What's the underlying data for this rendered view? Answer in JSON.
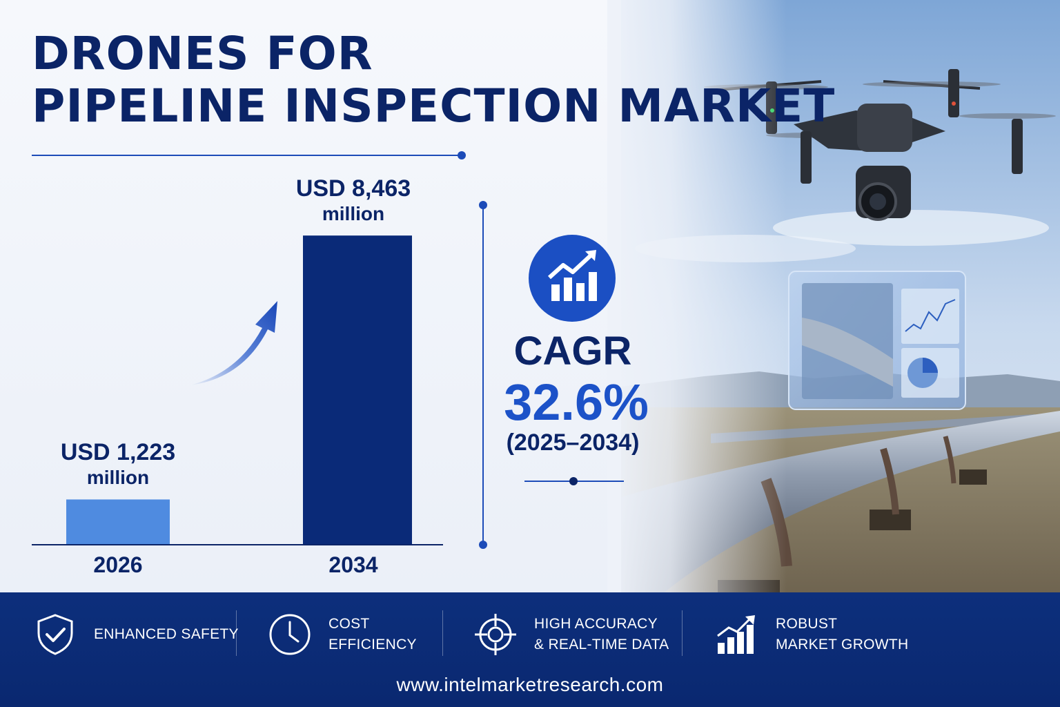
{
  "title": {
    "line1": "DRONES FOR",
    "line2": "PIPELINE INSPECTION MARKET"
  },
  "chart_data": {
    "type": "bar",
    "categories": [
      "2026",
      "2034"
    ],
    "values": [
      1223,
      8463
    ],
    "value_labels": [
      {
        "amount": "USD 1,223",
        "unit": "million"
      },
      {
        "amount": "USD 8,463",
        "unit": "million"
      }
    ],
    "bar_colors": [
      "#4f8be0",
      "#0a2a78"
    ],
    "ylim": [
      0,
      10000
    ],
    "grid": false
  },
  "cagr": {
    "label": "CAGR",
    "value": "32.6%",
    "period": "(2025–2034)",
    "icon": "growth-chart-icon"
  },
  "features": [
    {
      "icon": "shield-check-icon",
      "line1": "ENHANCED SAFETY",
      "line2": ""
    },
    {
      "icon": "clock-icon",
      "line1": "COST",
      "line2": "EFFICIENCY"
    },
    {
      "icon": "target-icon",
      "line1": "HIGH ACCURACY",
      "line2": "& REAL-TIME DATA"
    },
    {
      "icon": "bar-growth-icon",
      "line1": "ROBUST",
      "line2": "MARKET GROWTH"
    }
  ],
  "footer": {
    "url": "www.intelmarketresearch.com"
  },
  "colors": {
    "navy": "#0b2467",
    "accent_blue": "#1c52c8",
    "bar_light": "#4f8be0",
    "bar_dark": "#0a2a78",
    "footer_bg": "#0d2f7c"
  }
}
